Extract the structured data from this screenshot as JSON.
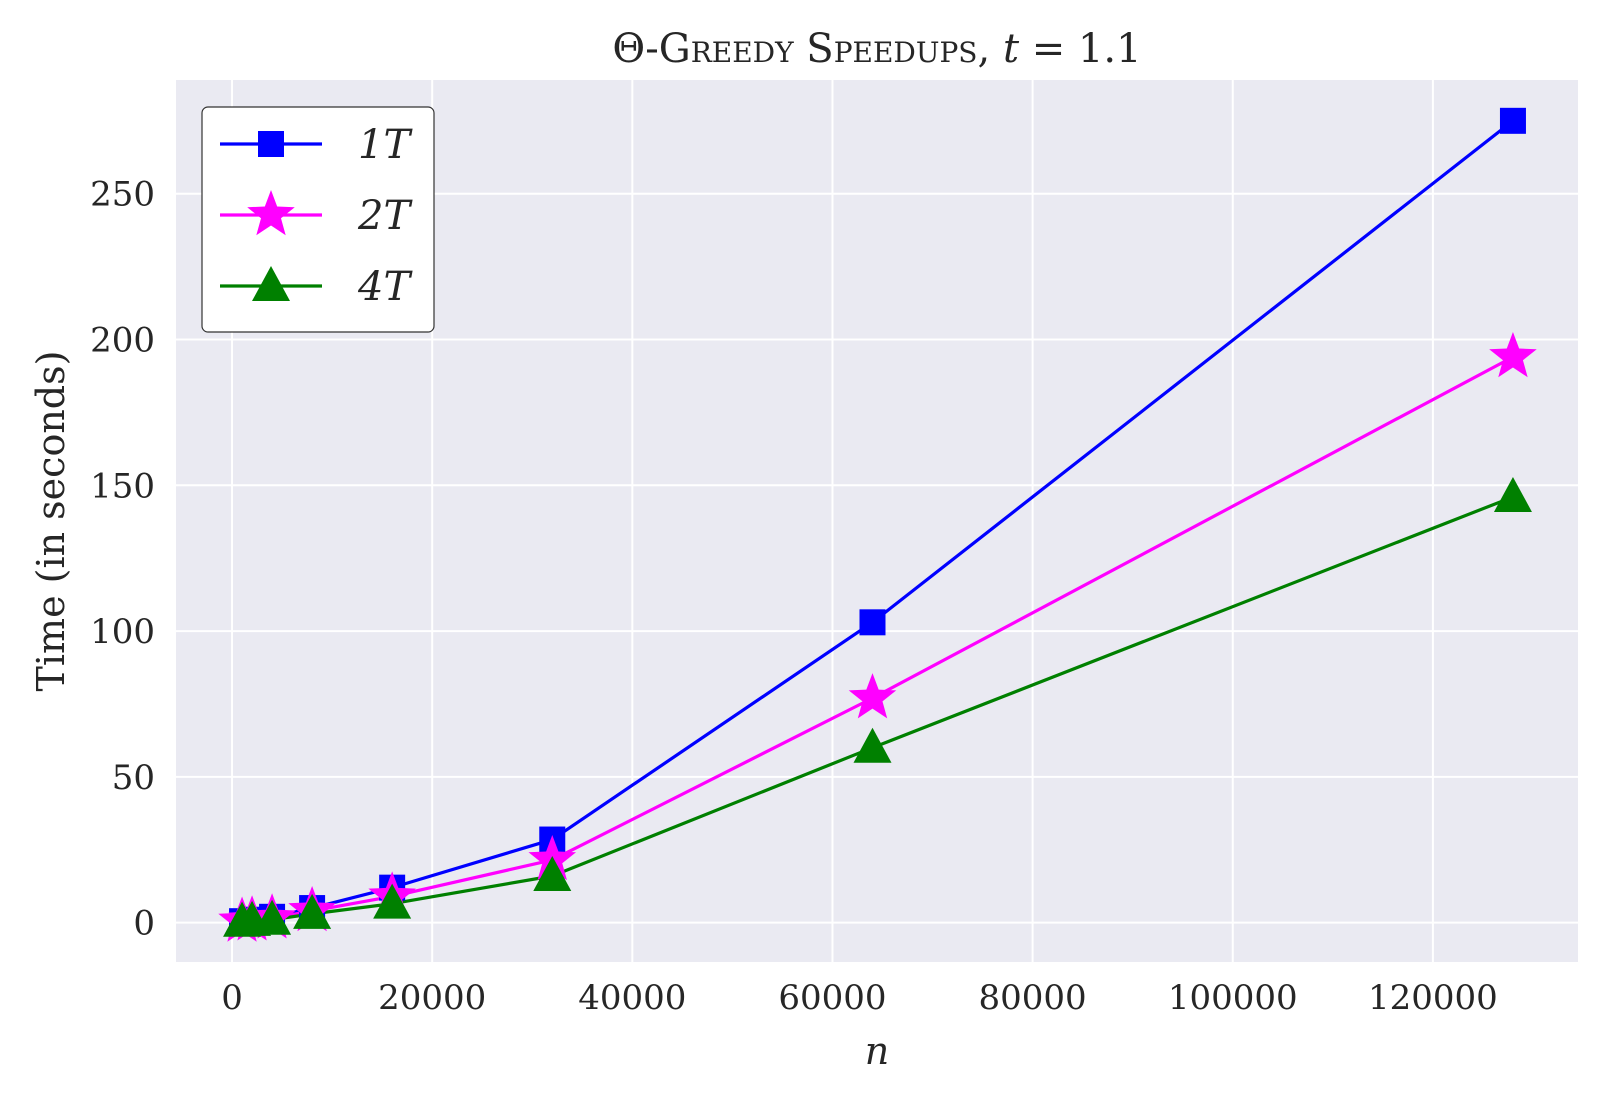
{
  "chart_data": {
    "type": "line",
    "title": {
      "prefix": "Θ-",
      "name": "Greedy Speedups",
      "suffix": ", ",
      "param_var": "t",
      "param_rest": " = 1.1"
    },
    "xlabel": "n",
    "ylabel": "Time (in seconds)",
    "xlim": [
      -5600,
      134500
    ],
    "ylim": [
      -13.5,
      289
    ],
    "x_ticks": [
      0,
      20000,
      40000,
      60000,
      80000,
      100000,
      120000
    ],
    "y_ticks": [
      0,
      50,
      100,
      150,
      200,
      250
    ],
    "grid": true,
    "legend_position": "top-left",
    "background_color": "#eaeaf2",
    "grid_color": "#ffffff",
    "x": [
      1000,
      2000,
      4000,
      8000,
      16000,
      32000,
      64000,
      128000
    ],
    "series": [
      {
        "name": "1T",
        "color": "#0000ff",
        "marker": "square",
        "values": [
          0.5,
          1.0,
          2.0,
          5.0,
          12.0,
          28.5,
          103.0,
          275.0
        ]
      },
      {
        "name": "2T",
        "color": "#ff00ff",
        "marker": "star",
        "values": [
          0.4,
          0.8,
          1.5,
          4.0,
          9.0,
          21.5,
          77.0,
          194.0
        ]
      },
      {
        "name": "4T",
        "color": "#008000",
        "marker": "triangle",
        "values": [
          0.3,
          0.6,
          1.0,
          3.0,
          6.5,
          16.0,
          60.0,
          146.0
        ]
      }
    ]
  }
}
